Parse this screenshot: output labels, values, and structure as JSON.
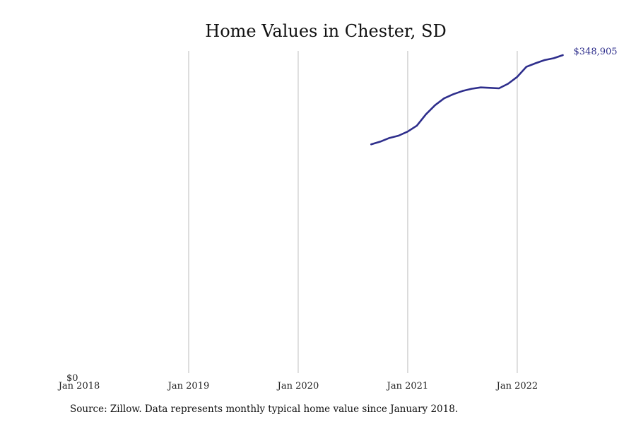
{
  "chart_data": {
    "type": "line",
    "title": "Home Values in Chester, SD",
    "x_ticks": [
      "Jan 2018",
      "Jan 2019",
      "Jan 2020",
      "Jan 2021",
      "Jan 2022"
    ],
    "xlim": [
      "2018-01",
      "2022-12"
    ],
    "y_tick_label": "$0",
    "ylim": [
      0,
      348905
    ],
    "grid": "vertical",
    "series": [
      {
        "color": "#2e2e8c",
        "end_label": "$348,905",
        "points": [
          [
            "2020-09",
            251000
          ],
          [
            "2020-10",
            254000
          ],
          [
            "2020-11",
            258000
          ],
          [
            "2020-12",
            260500
          ],
          [
            "2021-01",
            265000
          ],
          [
            "2021-02",
            271500
          ],
          [
            "2021-03",
            284000
          ],
          [
            "2021-04",
            294000
          ],
          [
            "2021-05",
            301500
          ],
          [
            "2021-06",
            306000
          ],
          [
            "2021-07",
            309500
          ],
          [
            "2021-08",
            312000
          ],
          [
            "2021-09",
            313500
          ],
          [
            "2021-10",
            313000
          ],
          [
            "2021-11",
            312500
          ],
          [
            "2021-12",
            317500
          ],
          [
            "2022-01",
            325000
          ],
          [
            "2022-02",
            336000
          ],
          [
            "2022-03",
            340000
          ],
          [
            "2022-04",
            343500
          ],
          [
            "2022-05",
            345500
          ],
          [
            "2022-06",
            348905
          ]
        ]
      }
    ]
  },
  "footer": {
    "source_text": "Source: Zillow. Data represents monthly typical home value since January 2018."
  }
}
